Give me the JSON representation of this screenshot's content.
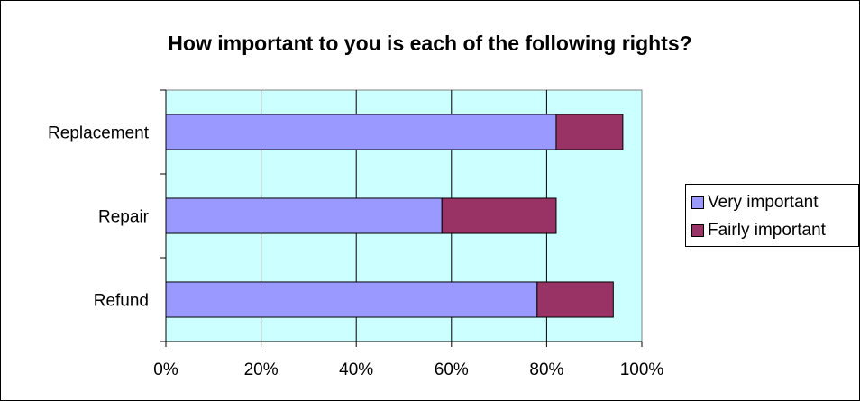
{
  "chart_data": {
    "type": "bar",
    "orientation": "horizontal",
    "stacked": true,
    "title": "How important to you is each of the following rights?",
    "categories": [
      "Replacement",
      "Repair",
      "Refund"
    ],
    "series": [
      {
        "name": "Very important",
        "values": [
          82,
          58,
          78
        ],
        "color": "#9999ff"
      },
      {
        "name": "Fairly important",
        "values": [
          14,
          24,
          16
        ],
        "color": "#993366"
      }
    ],
    "x_ticks": [
      "0%",
      "20%",
      "40%",
      "60%",
      "80%",
      "100%"
    ],
    "xlim": [
      0,
      100
    ],
    "grid": true,
    "plot_background": "#ccffff",
    "legend_position": "right"
  }
}
